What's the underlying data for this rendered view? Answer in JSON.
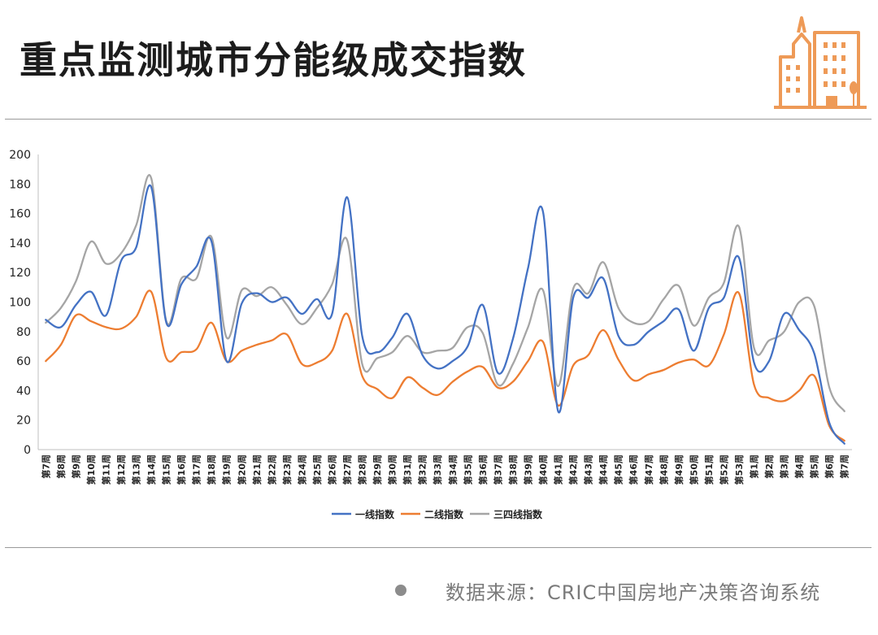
{
  "header": {
    "title": "重点监测城市分能级成交指数"
  },
  "logo": {
    "icon": "buildings-icon",
    "color": "#ee9a57"
  },
  "footer": {
    "source": "数据来源：CRIC中国房地产决策咨询系统"
  },
  "chart_data": {
    "type": "line",
    "title": "",
    "xlabel": "",
    "ylabel": "",
    "ylim": [
      0,
      200
    ],
    "yticks": [
      0,
      20,
      40,
      60,
      80,
      100,
      120,
      140,
      160,
      180,
      200
    ],
    "grid": false,
    "legend_position": "bottom",
    "categories": [
      "第7周",
      "第8周",
      "第9周",
      "第10周",
      "第11周",
      "第12周",
      "第13周",
      "第14周",
      "第15周",
      "第16周",
      "第17周",
      "第18周",
      "第19周",
      "第20周",
      "第21周",
      "第22周",
      "第23周",
      "第24周",
      "第25周",
      "第26周",
      "第27周",
      "第28周",
      "第29周",
      "第30周",
      "第31周",
      "第32周",
      "第33周",
      "第34周",
      "第35周",
      "第36周",
      "第37周",
      "第38周",
      "第39周",
      "第40周",
      "第41周",
      "第42周",
      "第43周",
      "第44周",
      "第45周",
      "第46周",
      "第47周",
      "第48周",
      "第49周",
      "第50周",
      "第51周",
      "第52周",
      "第53周",
      "第1周",
      "第2周",
      "第3周",
      "第4周",
      "第5周",
      "第6周",
      "第7周"
    ],
    "series": [
      {
        "name": "一线指数",
        "color": "#4472c4",
        "values": [
          88,
          83,
          98,
          107,
          91,
          128,
          137,
          178,
          86,
          112,
          124,
          141,
          60,
          99,
          106,
          100,
          103,
          92,
          102,
          92,
          171,
          77,
          66,
          76,
          92,
          64,
          55,
          60,
          70,
          98,
          52,
          75,
          123,
          161,
          26,
          103,
          103,
          116,
          77,
          71,
          80,
          87,
          95,
          67,
          96,
          103,
          130,
          59,
          60,
          92,
          81,
          65,
          18,
          4
        ]
      },
      {
        "name": "二线指数",
        "color": "#ed7d31",
        "values": [
          60,
          71,
          91,
          87,
          83,
          82,
          90,
          107,
          62,
          66,
          68,
          86,
          60,
          67,
          71,
          74,
          78,
          58,
          59,
          67,
          92,
          50,
          41,
          35,
          49,
          42,
          37,
          46,
          53,
          56,
          42,
          46,
          60,
          73,
          30,
          57,
          64,
          81,
          61,
          47,
          51,
          54,
          59,
          61,
          57,
          78,
          106,
          44,
          35,
          33,
          40,
          50,
          16,
          6
        ]
      },
      {
        "name": "三四线指数",
        "color": "#a5a5a5",
        "values": [
          86,
          96,
          114,
          141,
          126,
          133,
          152,
          184,
          87,
          116,
          116,
          144,
          76,
          108,
          104,
          110,
          98,
          85,
          96,
          112,
          142,
          58,
          62,
          66,
          77,
          66,
          67,
          69,
          83,
          79,
          44,
          58,
          83,
          108,
          43,
          109,
          106,
          127,
          96,
          86,
          87,
          102,
          111,
          84,
          103,
          113,
          151,
          69,
          74,
          80,
          100,
          97,
          42,
          26
        ]
      }
    ]
  }
}
